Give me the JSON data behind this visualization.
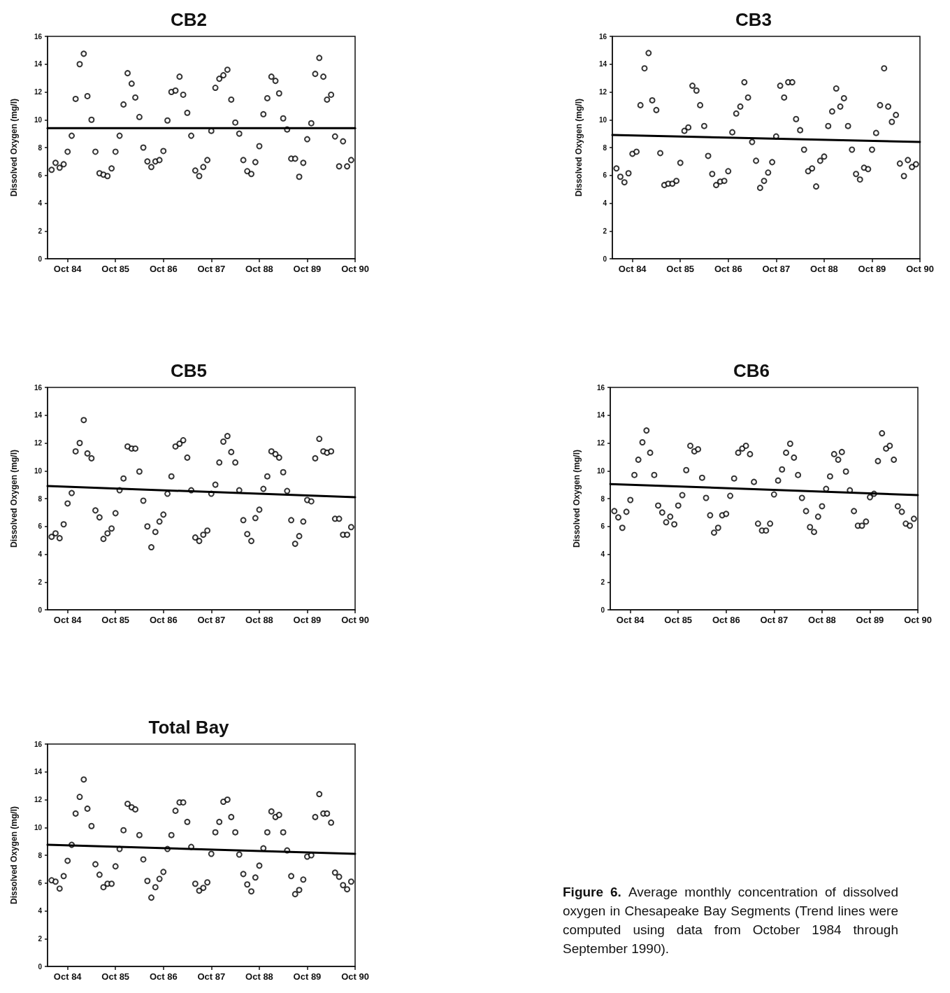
{
  "chart_data": [
    {
      "type": "scatter",
      "title": "CB2",
      "ylabel": "Dissolved Oxygen (mg/l)",
      "marker": "circle",
      "xlim": [
        "1984-05",
        "1990-10"
      ],
      "ylim": [
        0,
        16
      ],
      "yticks": [
        0,
        2,
        4,
        6,
        8,
        10,
        12,
        14,
        16
      ],
      "xticks": [
        {
          "value": "1984-10",
          "label": "Oct 84"
        },
        {
          "value": "1985-10",
          "label": "Oct 85"
        },
        {
          "value": "1986-10",
          "label": "Oct 86"
        },
        {
          "value": "1987-10",
          "label": "Oct 87"
        },
        {
          "value": "1988-10",
          "label": "Oct 88"
        },
        {
          "value": "1989-10",
          "label": "Oct 89"
        },
        {
          "value": "1990-10",
          "label": "Oct 90"
        }
      ],
      "x": [
        "1984-06",
        "1984-07",
        "1984-08",
        "1984-09",
        "1984-10",
        "1984-11",
        "1984-12",
        "1985-01",
        "1985-02",
        "1985-03",
        "1985-04",
        "1985-05",
        "1985-06",
        "1985-07",
        "1985-08",
        "1985-09",
        "1985-10",
        "1985-11",
        "1985-12",
        "1986-01",
        "1986-02",
        "1986-03",
        "1986-04",
        "1986-05",
        "1986-06",
        "1986-07",
        "1986-08",
        "1986-09",
        "1986-10",
        "1986-11",
        "1986-12",
        "1987-01",
        "1987-02",
        "1987-03",
        "1987-04",
        "1987-05",
        "1987-06",
        "1987-07",
        "1987-08",
        "1987-09",
        "1987-10",
        "1987-11",
        "1987-12",
        "1988-01",
        "1988-02",
        "1988-03",
        "1988-04",
        "1988-05",
        "1988-06",
        "1988-07",
        "1988-08",
        "1988-09",
        "1988-10",
        "1988-11",
        "1988-12",
        "1989-01",
        "1989-02",
        "1989-03",
        "1989-04",
        "1989-05",
        "1989-06",
        "1989-07",
        "1989-08",
        "1989-09",
        "1989-10",
        "1989-11",
        "1989-12",
        "1990-01",
        "1990-02",
        "1990-03",
        "1990-04",
        "1990-05",
        "1990-06",
        "1990-07",
        "1990-08",
        "1990-09"
      ],
      "series": [
        {
          "type": "scatter",
          "color": "#000000",
          "values": [
            6.4,
            6.9,
            6.55,
            6.8,
            7.7,
            8.85,
            11.5,
            14.0,
            14.75,
            11.7,
            10.0,
            7.7,
            6.15,
            6.05,
            5.95,
            6.5,
            7.7,
            8.85,
            11.1,
            13.35,
            12.6,
            11.6,
            10.2,
            8.0,
            7.0,
            6.6,
            7.0,
            7.1,
            7.75,
            9.95,
            12.0,
            12.1,
            13.1,
            11.8,
            10.5,
            8.85,
            6.35,
            5.95,
            6.6,
            7.1,
            9.2,
            12.3,
            12.95,
            13.2,
            13.6,
            11.45,
            9.8,
            9.0,
            7.1,
            6.3,
            6.1,
            6.95,
            8.1,
            10.4,
            11.55,
            13.1,
            12.8,
            11.9,
            10.1,
            9.3,
            7.2,
            7.2,
            5.9,
            6.9,
            8.6,
            9.75,
            13.3,
            14.45,
            13.1,
            11.45,
            11.8,
            8.8,
            6.65,
            8.45,
            6.65,
            7.1
          ]
        },
        {
          "type": "line",
          "color": "#000000",
          "marker": "none",
          "x": [
            "1984-05",
            "1990-10"
          ],
          "values": [
            9.4,
            9.4
          ]
        }
      ]
    },
    {
      "type": "scatter",
      "title": "CB3",
      "ylabel": "Dissolved Oxygen (mg/l)",
      "marker": "circle",
      "xlim": [
        "1984-05",
        "1990-10"
      ],
      "ylim": [
        0,
        16
      ],
      "yticks": [
        0,
        2,
        4,
        6,
        8,
        10,
        12,
        14,
        16
      ],
      "xticks": [
        {
          "value": "1984-10",
          "label": "Oct 84"
        },
        {
          "value": "1985-10",
          "label": "Oct 85"
        },
        {
          "value": "1986-10",
          "label": "Oct 86"
        },
        {
          "value": "1987-10",
          "label": "Oct 87"
        },
        {
          "value": "1988-10",
          "label": "Oct 88"
        },
        {
          "value": "1989-10",
          "label": "Oct 89"
        },
        {
          "value": "1990-10",
          "label": "Oct 90"
        }
      ],
      "x": [
        "1984-06",
        "1984-07",
        "1984-08",
        "1984-09",
        "1984-10",
        "1984-11",
        "1984-12",
        "1985-01",
        "1985-02",
        "1985-03",
        "1985-04",
        "1985-05",
        "1985-06",
        "1985-07",
        "1985-08",
        "1985-09",
        "1985-10",
        "1985-11",
        "1985-12",
        "1986-01",
        "1986-02",
        "1986-03",
        "1986-04",
        "1986-05",
        "1986-06",
        "1986-07",
        "1986-08",
        "1986-09",
        "1986-10",
        "1986-11",
        "1986-12",
        "1987-01",
        "1987-02",
        "1987-03",
        "1987-04",
        "1987-05",
        "1987-06",
        "1987-07",
        "1987-08",
        "1987-09",
        "1987-10",
        "1987-11",
        "1987-12",
        "1988-01",
        "1988-02",
        "1988-03",
        "1988-04",
        "1988-05",
        "1988-06",
        "1988-07",
        "1988-08",
        "1988-09",
        "1988-10",
        "1988-11",
        "1988-12",
        "1989-01",
        "1989-02",
        "1989-03",
        "1989-04",
        "1989-05",
        "1989-06",
        "1989-07",
        "1989-08",
        "1989-09",
        "1989-10",
        "1989-11",
        "1989-12",
        "1990-01",
        "1990-02",
        "1990-03",
        "1990-04",
        "1990-05",
        "1990-06",
        "1990-07",
        "1990-08",
        "1990-09"
      ],
      "series": [
        {
          "type": "scatter",
          "color": "#000000",
          "values": [
            6.5,
            5.9,
            5.5,
            6.15,
            7.55,
            7.7,
            11.05,
            13.7,
            14.8,
            11.4,
            10.7,
            7.6,
            5.3,
            5.4,
            5.4,
            5.6,
            6.9,
            9.2,
            9.45,
            12.45,
            12.1,
            11.05,
            9.55,
            7.4,
            6.1,
            5.3,
            5.55,
            5.6,
            6.3,
            9.1,
            10.45,
            10.95,
            12.7,
            11.6,
            8.4,
            7.05,
            5.1,
            5.6,
            6.2,
            6.95,
            8.8,
            12.45,
            11.6,
            12.7,
            12.7,
            10.05,
            9.25,
            7.85,
            6.3,
            6.5,
            5.2,
            7.05,
            7.35,
            9.55,
            10.6,
            12.25,
            10.95,
            11.55,
            9.55,
            7.85,
            6.1,
            5.7,
            6.55,
            6.45,
            7.85,
            9.05,
            11.05,
            13.7,
            10.95,
            9.85,
            10.35,
            6.85,
            5.95,
            7.1,
            6.6,
            6.8
          ]
        },
        {
          "type": "line",
          "color": "#000000",
          "marker": "none",
          "x": [
            "1984-05",
            "1990-10"
          ],
          "values": [
            8.9,
            8.4
          ]
        }
      ]
    },
    {
      "type": "scatter",
      "title": "CB5",
      "ylabel": "Dissolved Oxygen (mg/l)",
      "marker": "circle",
      "xlim": [
        "1984-05",
        "1990-10"
      ],
      "ylim": [
        0,
        16
      ],
      "yticks": [
        0,
        2,
        4,
        6,
        8,
        10,
        12,
        14,
        16
      ],
      "xticks": [
        {
          "value": "1984-10",
          "label": "Oct 84"
        },
        {
          "value": "1985-10",
          "label": "Oct 85"
        },
        {
          "value": "1986-10",
          "label": "Oct 86"
        },
        {
          "value": "1987-10",
          "label": "Oct 87"
        },
        {
          "value": "1988-10",
          "label": "Oct 88"
        },
        {
          "value": "1989-10",
          "label": "Oct 89"
        },
        {
          "value": "1990-10",
          "label": "Oct 90"
        }
      ],
      "x": [
        "1984-06",
        "1984-07",
        "1984-08",
        "1984-09",
        "1984-10",
        "1984-11",
        "1984-12",
        "1985-01",
        "1985-02",
        "1985-03",
        "1985-04",
        "1985-05",
        "1985-06",
        "1985-07",
        "1985-08",
        "1985-09",
        "1985-10",
        "1985-11",
        "1985-12",
        "1986-01",
        "1986-02",
        "1986-03",
        "1986-04",
        "1986-05",
        "1986-06",
        "1986-07",
        "1986-08",
        "1986-09",
        "1986-10",
        "1986-11",
        "1986-12",
        "1987-01",
        "1987-02",
        "1987-03",
        "1987-04",
        "1987-05",
        "1987-06",
        "1987-07",
        "1987-08",
        "1987-09",
        "1987-10",
        "1987-11",
        "1987-12",
        "1988-01",
        "1988-02",
        "1988-03",
        "1988-04",
        "1988-05",
        "1988-06",
        "1988-07",
        "1988-08",
        "1988-09",
        "1988-10",
        "1988-11",
        "1988-12",
        "1989-01",
        "1989-02",
        "1989-03",
        "1989-04",
        "1989-05",
        "1989-06",
        "1989-07",
        "1989-08",
        "1989-09",
        "1989-10",
        "1989-11",
        "1989-12",
        "1990-01",
        "1990-02",
        "1990-03",
        "1990-04",
        "1990-05",
        "1990-06",
        "1990-07",
        "1990-08",
        "1990-09"
      ],
      "series": [
        {
          "type": "scatter",
          "color": "#000000",
          "values": [
            5.25,
            5.5,
            5.15,
            6.15,
            7.65,
            8.4,
            11.4,
            12.0,
            13.65,
            11.25,
            10.9,
            7.15,
            6.65,
            5.1,
            5.5,
            5.85,
            6.95,
            8.6,
            9.45,
            11.75,
            11.6,
            11.6,
            9.95,
            7.85,
            6.0,
            4.5,
            5.6,
            6.35,
            6.85,
            8.35,
            9.6,
            11.75,
            11.95,
            12.2,
            10.95,
            8.6,
            5.2,
            4.95,
            5.4,
            5.7,
            8.35,
            9.0,
            10.6,
            12.1,
            12.5,
            11.35,
            10.6,
            8.6,
            6.45,
            5.45,
            4.95,
            6.6,
            7.2,
            8.7,
            9.6,
            11.4,
            11.2,
            10.95,
            9.9,
            8.55,
            6.45,
            4.75,
            5.3,
            6.35,
            7.9,
            7.8,
            10.9,
            12.3,
            11.4,
            11.3,
            11.4,
            6.55,
            6.55,
            5.4,
            5.4,
            5.95
          ]
        },
        {
          "type": "line",
          "color": "#000000",
          "marker": "none",
          "x": [
            "1984-05",
            "1990-10"
          ],
          "values": [
            8.9,
            8.1
          ]
        }
      ]
    },
    {
      "type": "scatter",
      "title": "CB6",
      "ylabel": "Dissolved Oxygen (mg/l)",
      "marker": "circle",
      "xlim": [
        "1984-05",
        "1990-10"
      ],
      "ylim": [
        0,
        16
      ],
      "yticks": [
        0,
        2,
        4,
        6,
        8,
        10,
        12,
        14,
        16
      ],
      "xticks": [
        {
          "value": "1984-10",
          "label": "Oct 84"
        },
        {
          "value": "1985-10",
          "label": "Oct 85"
        },
        {
          "value": "1986-10",
          "label": "Oct 86"
        },
        {
          "value": "1987-10",
          "label": "Oct 87"
        },
        {
          "value": "1988-10",
          "label": "Oct 88"
        },
        {
          "value": "1989-10",
          "label": "Oct 89"
        },
        {
          "value": "1990-10",
          "label": "Oct 90"
        }
      ],
      "x": [
        "1984-06",
        "1984-07",
        "1984-08",
        "1984-09",
        "1984-10",
        "1984-11",
        "1984-12",
        "1985-01",
        "1985-02",
        "1985-03",
        "1985-04",
        "1985-05",
        "1985-06",
        "1985-07",
        "1985-08",
        "1985-09",
        "1985-10",
        "1985-11",
        "1985-12",
        "1986-01",
        "1986-02",
        "1986-03",
        "1986-04",
        "1986-05",
        "1986-06",
        "1986-07",
        "1986-08",
        "1986-09",
        "1986-10",
        "1986-11",
        "1986-12",
        "1987-01",
        "1987-02",
        "1987-03",
        "1987-04",
        "1987-05",
        "1987-06",
        "1987-07",
        "1987-08",
        "1987-09",
        "1987-10",
        "1987-11",
        "1987-12",
        "1988-01",
        "1988-02",
        "1988-03",
        "1988-04",
        "1988-05",
        "1988-06",
        "1988-07",
        "1988-08",
        "1988-09",
        "1988-10",
        "1988-11",
        "1988-12",
        "1989-01",
        "1989-02",
        "1989-03",
        "1989-04",
        "1989-05",
        "1989-06",
        "1989-07",
        "1989-08",
        "1989-09",
        "1989-10",
        "1989-11",
        "1989-12",
        "1990-01",
        "1990-02",
        "1990-03",
        "1990-04",
        "1990-05",
        "1990-06",
        "1990-07",
        "1990-08",
        "1990-09"
      ],
      "series": [
        {
          "type": "scatter",
          "color": "#000000",
          "values": [
            7.1,
            6.65,
            5.9,
            7.05,
            7.9,
            9.7,
            10.8,
            12.05,
            12.9,
            11.3,
            9.7,
            7.5,
            7.0,
            6.3,
            6.7,
            6.15,
            7.5,
            8.25,
            10.05,
            11.8,
            11.4,
            11.55,
            9.5,
            8.05,
            6.8,
            5.55,
            5.9,
            6.8,
            6.9,
            8.2,
            9.45,
            11.3,
            11.6,
            11.8,
            11.2,
            9.2,
            6.2,
            5.7,
            5.7,
            6.2,
            8.3,
            9.3,
            10.1,
            11.3,
            11.95,
            10.95,
            9.7,
            8.05,
            7.1,
            5.95,
            5.6,
            6.7,
            7.45,
            8.7,
            9.6,
            11.2,
            10.8,
            11.35,
            9.95,
            8.6,
            7.1,
            6.05,
            6.05,
            6.35,
            8.1,
            8.35,
            10.7,
            12.7,
            11.6,
            11.8,
            10.8,
            7.45,
            7.05,
            6.2,
            6.05,
            6.55
          ]
        },
        {
          "type": "line",
          "color": "#000000",
          "marker": "none",
          "x": [
            "1984-05",
            "1990-10"
          ],
          "values": [
            9.05,
            8.25
          ]
        }
      ]
    },
    {
      "type": "scatter",
      "title": "Total Bay",
      "ylabel": "Dissolved Oxygen (mg/l)",
      "marker": "circle",
      "xlim": [
        "1984-05",
        "1990-10"
      ],
      "ylim": [
        0,
        16
      ],
      "yticks": [
        0,
        2,
        4,
        6,
        8,
        10,
        12,
        14,
        16
      ],
      "xticks": [
        {
          "value": "1984-10",
          "label": "Oct 84"
        },
        {
          "value": "1985-10",
          "label": "Oct 85"
        },
        {
          "value": "1986-10",
          "label": "Oct 86"
        },
        {
          "value": "1987-10",
          "label": "Oct 87"
        },
        {
          "value": "1988-10",
          "label": "Oct 88"
        },
        {
          "value": "1989-10",
          "label": "Oct 89"
        },
        {
          "value": "1990-10",
          "label": "Oct 90"
        }
      ],
      "x": [
        "1984-06",
        "1984-07",
        "1984-08",
        "1984-09",
        "1984-10",
        "1984-11",
        "1984-12",
        "1985-01",
        "1985-02",
        "1985-03",
        "1985-04",
        "1985-05",
        "1985-06",
        "1985-07",
        "1985-08",
        "1985-09",
        "1985-10",
        "1985-11",
        "1985-12",
        "1986-01",
        "1986-02",
        "1986-03",
        "1986-04",
        "1986-05",
        "1986-06",
        "1986-07",
        "1986-08",
        "1986-09",
        "1986-10",
        "1986-11",
        "1986-12",
        "1987-01",
        "1987-02",
        "1987-03",
        "1987-04",
        "1987-05",
        "1987-06",
        "1987-07",
        "1987-08",
        "1987-09",
        "1987-10",
        "1987-11",
        "1987-12",
        "1988-01",
        "1988-02",
        "1988-03",
        "1988-04",
        "1988-05",
        "1988-06",
        "1988-07",
        "1988-08",
        "1988-09",
        "1988-10",
        "1988-11",
        "1988-12",
        "1989-01",
        "1989-02",
        "1989-03",
        "1989-04",
        "1989-05",
        "1989-06",
        "1989-07",
        "1989-08",
        "1989-09",
        "1989-10",
        "1989-11",
        "1989-12",
        "1990-01",
        "1990-02",
        "1990-03",
        "1990-04",
        "1990-05",
        "1990-06",
        "1990-07",
        "1990-08",
        "1990-09"
      ],
      "series": [
        {
          "type": "scatter",
          "color": "#000000",
          "values": [
            6.2,
            6.1,
            5.6,
            6.5,
            7.6,
            8.75,
            11.0,
            12.2,
            13.45,
            11.35,
            10.1,
            7.35,
            6.6,
            5.7,
            5.95,
            5.95,
            7.2,
            8.45,
            9.8,
            11.7,
            11.45,
            11.3,
            9.45,
            7.7,
            6.15,
            4.95,
            5.7,
            6.3,
            6.8,
            8.45,
            9.45,
            11.2,
            11.8,
            11.8,
            10.4,
            8.6,
            5.95,
            5.45,
            5.65,
            6.05,
            8.1,
            9.65,
            10.4,
            11.85,
            12.0,
            10.75,
            9.65,
            8.05,
            6.65,
            5.9,
            5.4,
            6.4,
            7.25,
            8.5,
            9.65,
            11.15,
            10.75,
            10.9,
            9.65,
            8.35,
            6.5,
            5.2,
            5.5,
            6.25,
            7.9,
            8.0,
            10.75,
            12.4,
            11.0,
            11.0,
            10.35,
            6.75,
            6.45,
            5.85,
            5.55,
            6.1
          ]
        },
        {
          "type": "line",
          "color": "#000000",
          "marker": "none",
          "x": [
            "1984-05",
            "1990-10"
          ],
          "values": [
            8.75,
            8.1
          ]
        }
      ]
    },
    {
      "type": "other",
      "annotations": [
        "Figure 6.",
        "Average monthly concentration of dissolved oxygen in Chesapeake Bay Segments (Trend lines were computed using data from October 1984 through September 1990)."
      ]
    }
  ]
}
